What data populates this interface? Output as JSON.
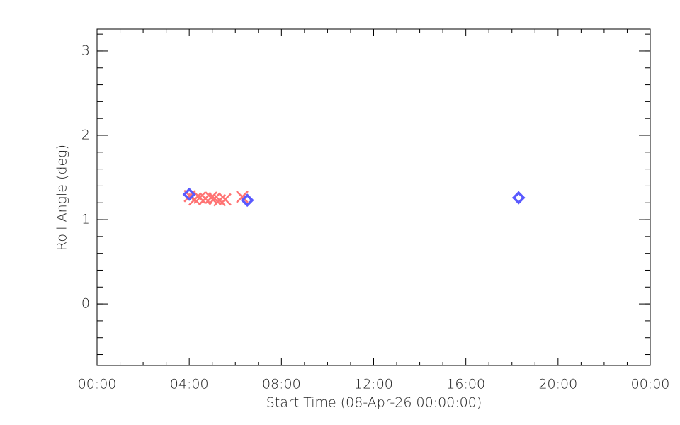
{
  "chart_data": {
    "type": "scatter",
    "xlabel": "Start Time (08-Apr-26 00:00:00)",
    "ylabel": "Roll Angle (deg)",
    "xlim": [
      0,
      24
    ],
    "xticks": [
      {
        "value": 0,
        "label": "00:00"
      },
      {
        "value": 4,
        "label": "04:00"
      },
      {
        "value": 8,
        "label": "08:00"
      },
      {
        "value": 12,
        "label": "12:00"
      },
      {
        "value": 16,
        "label": "16:00"
      },
      {
        "value": 20,
        "label": "20:00"
      },
      {
        "value": 24,
        "label": "00:00"
      }
    ],
    "ylim": [
      -0.73,
      3.26
    ],
    "yticks": [
      0,
      1,
      2,
      3
    ],
    "series": [
      {
        "color": "#ff7373",
        "marker": "x",
        "x": [
          4.03,
          4.24,
          4.46,
          4.7,
          4.95,
          5.1,
          5.32,
          5.56,
          6.3
        ],
        "values": [
          1.28,
          1.24,
          1.26,
          1.25,
          1.26,
          1.25,
          1.23,
          1.24,
          1.27
        ]
      },
      {
        "color": "#5a5aff",
        "marker": "diamond",
        "x": [
          4.0,
          6.52,
          18.29
        ],
        "values": [
          1.3,
          1.23,
          1.26
        ]
      }
    ]
  }
}
